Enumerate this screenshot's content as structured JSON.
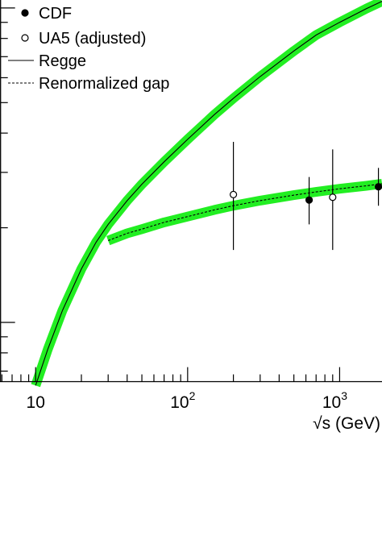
{
  "chart_data": {
    "type": "scatter",
    "title": "",
    "xlabel": "√s (GeV)",
    "ylabel": "",
    "xscale": "log",
    "yscale": "log",
    "xlim": [
      5.9,
      1900
    ],
    "ylim": [
      0.065,
      1.06
    ],
    "grid": false,
    "legend_position": "top-left",
    "x_ticks": [
      {
        "value": 10,
        "base": "10",
        "exp": ""
      },
      {
        "value": 100,
        "base": "10",
        "exp": "2"
      },
      {
        "value": 1000,
        "base": "10",
        "exp": "3"
      }
    ],
    "series": [
      {
        "name": "CDF",
        "kind": "points",
        "marker": "filled-circle",
        "points": [
          {
            "x": 630,
            "y": 0.245,
            "ylo": 0.205,
            "yhi": 0.29
          },
          {
            "x": 1800,
            "y": 0.27,
            "ylo": 0.235,
            "yhi": 0.31
          }
        ]
      },
      {
        "name": "UA5 (adjusted)",
        "kind": "points",
        "marker": "open-circle",
        "points": [
          {
            "x": 200,
            "y": 0.255,
            "ylo": 0.17,
            "yhi": 0.375
          },
          {
            "x": 900,
            "y": 0.25,
            "ylo": 0.17,
            "yhi": 0.355
          }
        ]
      },
      {
        "name": "Regge",
        "kind": "line",
        "style": "solid",
        "band": true,
        "x": [
          10,
          12,
          15,
          20,
          25,
          30,
          40,
          50,
          70,
          100,
          150,
          200,
          300,
          500,
          700,
          1000,
          1500,
          1900
        ],
        "y": [
          0.063,
          0.082,
          0.109,
          0.148,
          0.18,
          0.205,
          0.244,
          0.275,
          0.324,
          0.382,
          0.458,
          0.516,
          0.605,
          0.73,
          0.82,
          0.9,
          0.995,
          1.05
        ]
      },
      {
        "name": "Renormalized gap",
        "kind": "line",
        "style": "dashed",
        "band": true,
        "x": [
          30,
          40,
          50,
          70,
          100,
          150,
          200,
          300,
          500,
          700,
          1000,
          1500,
          1900
        ],
        "y": [
          0.182,
          0.192,
          0.198,
          0.208,
          0.217,
          0.228,
          0.235,
          0.244,
          0.254,
          0.26,
          0.266,
          0.272,
          0.276
        ]
      }
    ],
    "colors": {
      "band": "#22ee22",
      "axis": "#000000",
      "line": "#000000"
    }
  }
}
